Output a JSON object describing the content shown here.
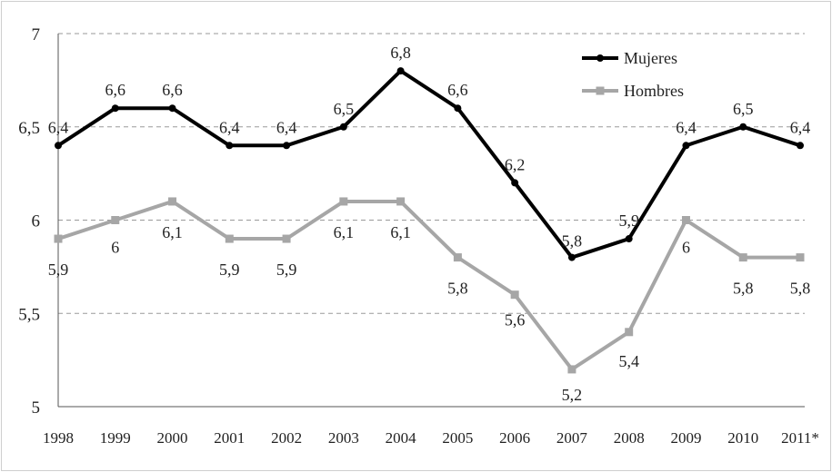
{
  "chart_data": {
    "type": "line",
    "categories": [
      "1998",
      "1999",
      "2000",
      "2001",
      "2002",
      "2003",
      "2004",
      "2005",
      "2006",
      "2007",
      "2008",
      "2009",
      "2010",
      "2011*"
    ],
    "series": [
      {
        "name": "Mujeres",
        "color": "#000000",
        "values": [
          6.4,
          6.6,
          6.6,
          6.4,
          6.4,
          6.5,
          6.8,
          6.6,
          6.2,
          5.8,
          5.9,
          6.4,
          6.5,
          6.4
        ],
        "labels": [
          "6,4",
          "6,6",
          "6,6",
          "6,4",
          "6,4",
          "6,5",
          "6,8",
          "6,6",
          "6,2",
          "5,8",
          "5,9",
          "6,4",
          "6,5",
          "6,4"
        ]
      },
      {
        "name": "Hombres",
        "color": "#a6a6a6",
        "values": [
          5.9,
          6.0,
          6.1,
          5.9,
          5.9,
          6.1,
          6.1,
          5.8,
          5.6,
          5.2,
          5.4,
          6.0,
          5.8,
          5.8
        ],
        "labels": [
          "5,9",
          "6",
          "6,1",
          "5,9",
          "5,9",
          "6,1",
          "6,1",
          "5,8",
          "5,6",
          "5,2",
          "5,4",
          "6",
          "5,8",
          "5,8"
        ]
      }
    ],
    "yticks": [
      5,
      5.5,
      6,
      6.5,
      7
    ],
    "ytick_labels": [
      "5",
      "5,5",
      "6",
      "6,5",
      "7"
    ],
    "ylim": [
      5,
      7
    ],
    "grid": "horizontal dashed",
    "legend_position": "top-right",
    "title": "",
    "xlabel": "",
    "ylabel": ""
  }
}
